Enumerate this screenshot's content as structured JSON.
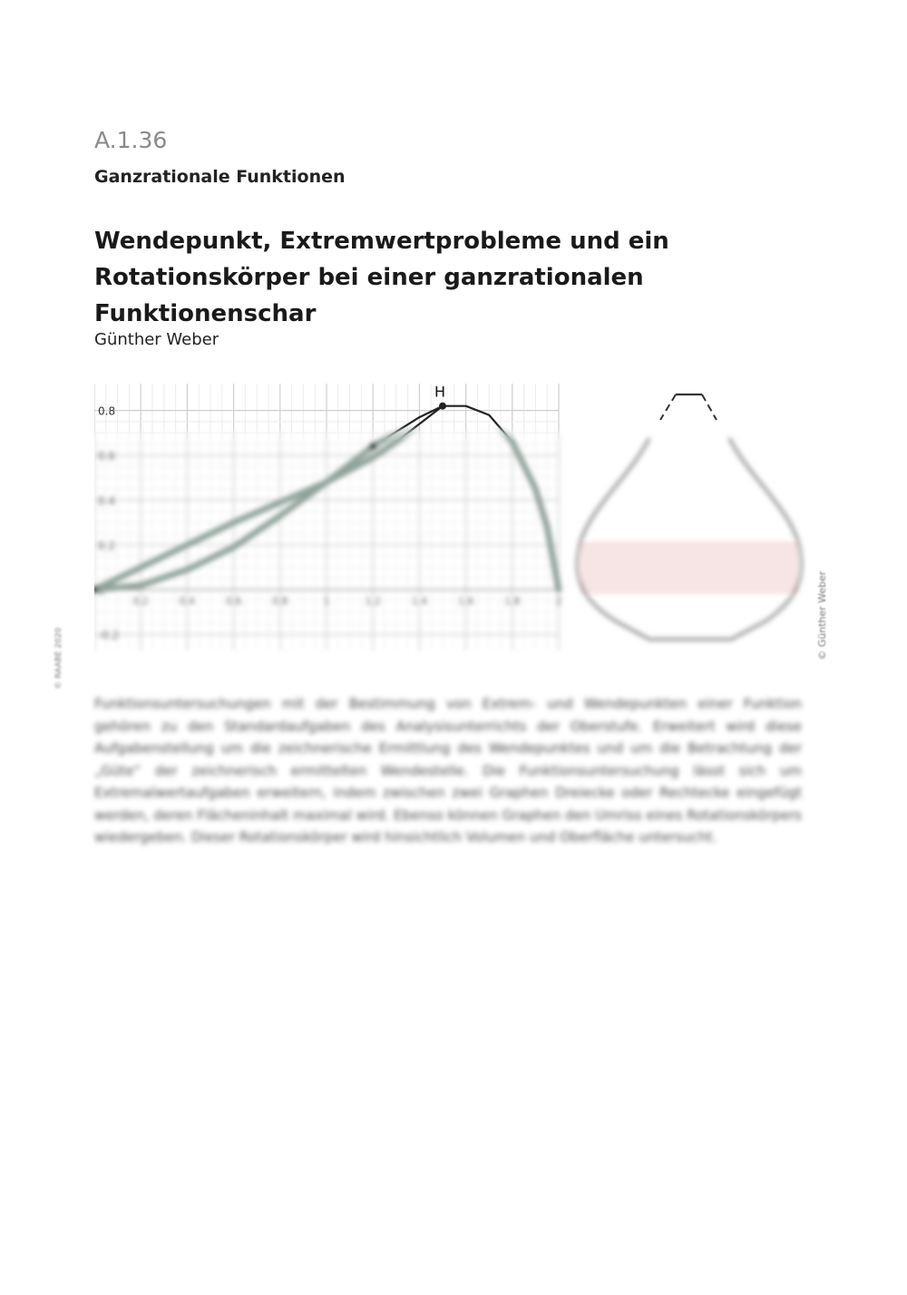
{
  "header": {
    "section_code": "A.1.36",
    "category": "Ganzrationale Funktionen"
  },
  "title": "Wendepunkt, Extremwertprobleme und ein Rotationskörper bei einer ganzrationalen Funktionenschar",
  "author": "Günther Weber",
  "figure": {
    "chart_data": {
      "type": "line",
      "grid": true,
      "x_ticks": [
        "0",
        "0.2",
        "0.4",
        "0.6",
        "0.8",
        "1",
        "1.2",
        "1.4",
        "1.6",
        "1.8",
        "2"
      ],
      "y_ticks": [
        "-0.2",
        "0",
        "0.2",
        "0.4",
        "0.6",
        "0.8"
      ],
      "xlim": [
        0,
        2
      ],
      "ylim": [
        -0.27,
        0.92
      ],
      "series": [
        {
          "x": [
            0,
            0.2,
            0.4,
            0.6,
            0.8,
            1.0,
            1.2,
            1.4,
            1.5,
            1.6,
            1.7,
            1.8,
            1.9,
            1.95,
            2.0
          ],
          "y": [
            0,
            0.02,
            0.09,
            0.19,
            0.33,
            0.48,
            0.64,
            0.77,
            0.82,
            0.82,
            0.78,
            0.66,
            0.45,
            0.28,
            0
          ]
        },
        {
          "x": [
            0,
            0.2,
            0.4,
            0.6,
            0.8,
            1.0,
            1.2,
            1.3,
            1.4,
            1.5
          ],
          "y": [
            0,
            0.1,
            0.2,
            0.3,
            0.39,
            0.48,
            0.59,
            0.66,
            0.74,
            0.82
          ]
        }
      ],
      "points": [
        {
          "label": "",
          "x": 0,
          "y": 0
        },
        {
          "label": "",
          "x": 1.2,
          "y": 0.64
        },
        {
          "label": "H",
          "x": 1.5,
          "y": 0.82
        }
      ]
    },
    "flask": {
      "fill_color": "#f6e1e1",
      "stroke_color": "#555555"
    }
  },
  "sidebar": {
    "left_copyright": "© RAABE 2020",
    "right_copyright": "© Günther Weber"
  },
  "abstract": "Funktionsuntersuchungen mit der Bestimmung von Extrem- und Wendepunkten einer Funktion gehören zu den Standardaufgaben des Analysisunterrichts der Oberstufe. Erweitert wird diese Aufgabenstellung um die zeichnerische Ermittlung des Wendepunktes und um die Betrachtung der „Güte“ der zeichnerisch ermittelten Wendestelle. Die Funktionsuntersuchung lässt sich um Extremalwertaufgaben erweitern, indem zwischen zwei Graphen Dreiecke oder Rechtecke eingefügt werden, deren Flächeninhalt maximal wird. Ebenso können Graphen den Umriss eines Rotationskörpers wiedergeben. Dieser Rotationskörper wird hinsichtlich Volumen und Oberfläche untersucht."
}
